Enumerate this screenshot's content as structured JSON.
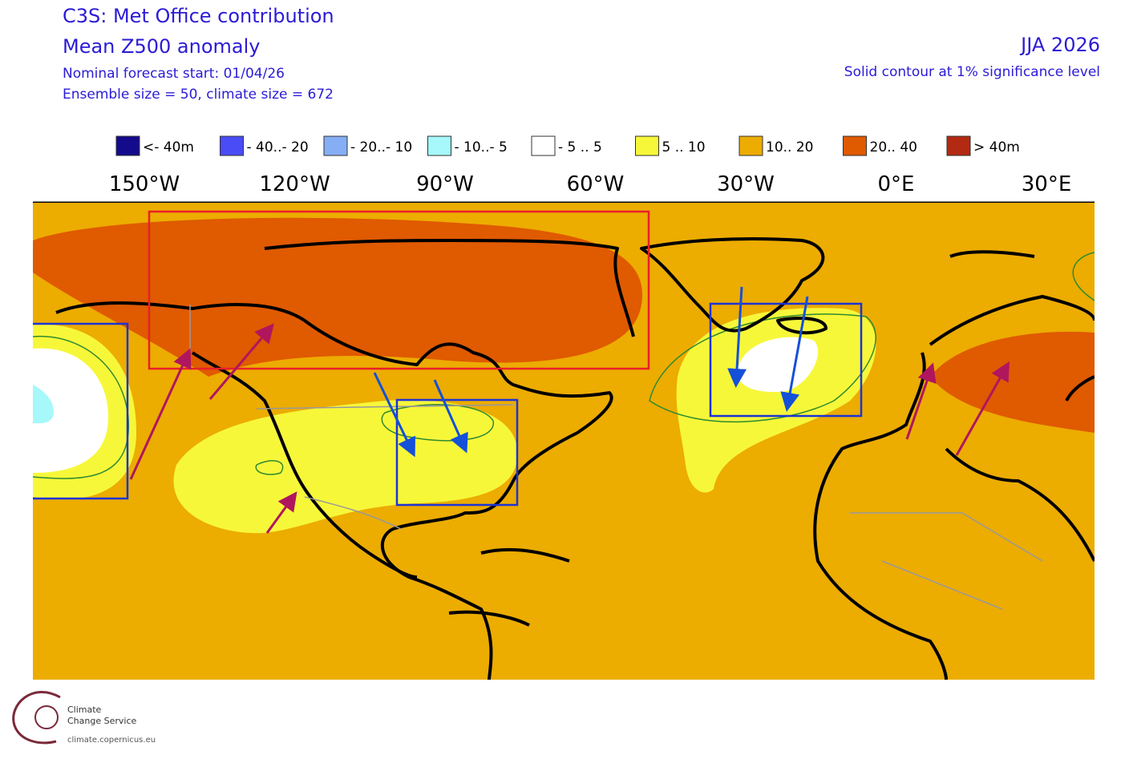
{
  "header": {
    "title": "C3S: Met Office contribution",
    "subtitle": "Mean Z500 anomaly",
    "forecast_start": "Nominal forecast start: 01/04/26",
    "ensemble": "Ensemble size = 50, climate size = 672",
    "season": "JJA 2026",
    "significance": "Solid contour at 1% significance level"
  },
  "legend": [
    {
      "label": "<- 40m",
      "color": "#140a8c"
    },
    {
      "label": "- 40..- 20",
      "color": "#4a4cf5"
    },
    {
      "label": "- 20..- 10",
      "color": "#86aef5"
    },
    {
      "label": "- 10..- 5",
      "color": "#a6f8fa"
    },
    {
      "label": "- 5 .. 5",
      "color": "#ffffff"
    },
    {
      "label": "5 .. 10",
      "color": "#f7f73a"
    },
    {
      "label": "10.. 20",
      "color": "#ecac00"
    },
    {
      "label": "20.. 40",
      "color": "#e05a00"
    },
    {
      "label": ">  40m",
      "color": "#b32a12"
    }
  ],
  "longitudes": [
    "150°W",
    "120°W",
    "90°W",
    "60°W",
    "30°W",
    "0°E",
    "30°E"
  ],
  "footer": {
    "line1": "Climate",
    "line2": "Change Service",
    "url": "climate.copernicus.eu"
  }
}
